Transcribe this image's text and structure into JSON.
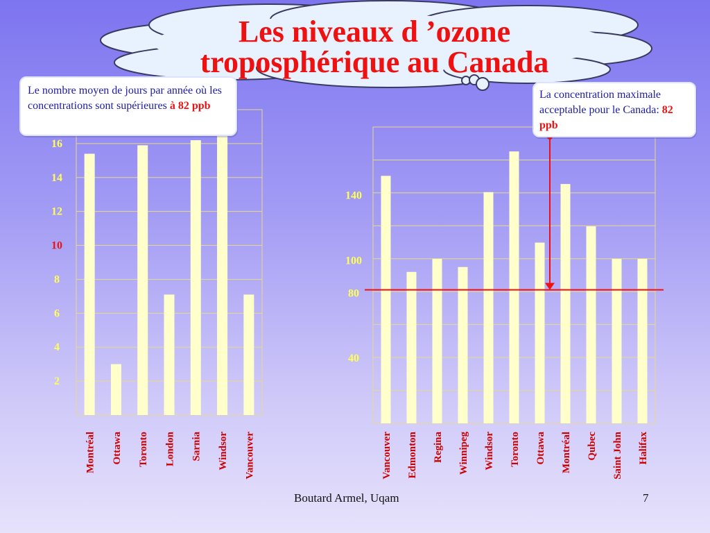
{
  "slide": {
    "title_line1": "Les niveaux d ’ozone",
    "title_line2": "troposphérique au Canada",
    "footer_author": "Boutard Armel, Uqam",
    "page_number": "7"
  },
  "callout_left": {
    "text": "Le nombre moyen de jours par année où les concentrations sont supérieures",
    "highlight": "à 82 ppb"
  },
  "callout_right": {
    "text": "La concentration maximale acceptable pour le Canada:",
    "highlight": "82 ppb"
  },
  "colors": {
    "bar": "#ffffcc",
    "grid": "#e8d98a",
    "title": "#ee1111",
    "tick": "#ffff55",
    "tick_highlight": "#ee1111",
    "category": "#cc0000",
    "threshold": "#ee1111"
  },
  "chart_data": [
    {
      "type": "bar",
      "title": "",
      "xlabel": "",
      "ylabel": "",
      "ylim": [
        0,
        18
      ],
      "yticks": [
        {
          "value": 2,
          "label": "2"
        },
        {
          "value": 4,
          "label": "4"
        },
        {
          "value": 6,
          "label": "6"
        },
        {
          "value": 8,
          "label": "8"
        },
        {
          "value": 10,
          "label": "10",
          "highlight": true
        },
        {
          "value": 12,
          "label": "12"
        },
        {
          "value": 14,
          "label": "14"
        },
        {
          "value": 16,
          "label": "16"
        }
      ],
      "grid": true,
      "categories": [
        "Montréal",
        "Ottawa",
        "Toronto",
        "London",
        "Sarnia",
        "Windsor",
        "Vancouver"
      ],
      "values": [
        15.4,
        3,
        15.9,
        7.1,
        16.2,
        17,
        7.1
      ]
    },
    {
      "type": "bar",
      "title": "",
      "xlabel": "",
      "ylabel": "",
      "ylim": [
        0,
        182
      ],
      "yticks": [
        {
          "value": 40,
          "label": "40"
        },
        {
          "value": 80,
          "label": "80"
        },
        {
          "value": 100,
          "label": "100"
        },
        {
          "value": 140,
          "label": "140"
        }
      ],
      "grid": true,
      "categories": [
        "Vancouver",
        "Edmonton",
        "Regina",
        "Winnipeg",
        "Windsor",
        "Toronto",
        "Ottawa",
        "Montréal",
        "Qubec",
        "Saint John",
        "Halifax"
      ],
      "values": [
        152,
        93,
        101,
        96,
        142,
        167,
        111,
        147,
        121,
        101,
        101
      ],
      "threshold": 82
    }
  ]
}
